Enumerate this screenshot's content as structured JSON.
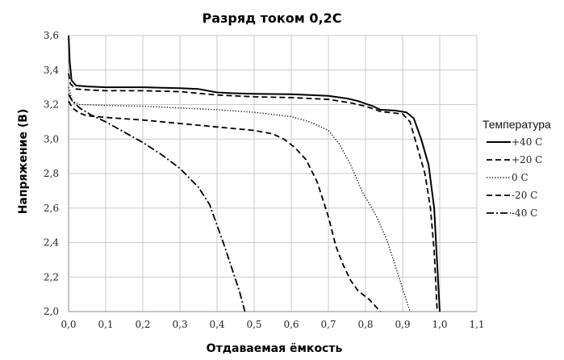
{
  "chart_data": {
    "type": "line",
    "title": "Разряд током 0,2С",
    "xlabel": "Отдаваемая ёмкость",
    "ylabel": "Напряжение (В)",
    "xlim": [
      0,
      1.1
    ],
    "ylim": [
      2.0,
      3.6
    ],
    "x_ticks": [
      "0,0",
      "0,1",
      "0,2",
      "0,3",
      "0,4",
      "0,5",
      "0,6",
      "0,7",
      "0,8",
      "0,9",
      "1,0",
      "1,1"
    ],
    "y_ticks": [
      "2,0",
      "2,2",
      "2,4",
      "2,6",
      "2,8",
      "3,0",
      "3,2",
      "3,4",
      "3,6"
    ],
    "grid": true,
    "legend": {
      "title": "Температура",
      "placement": "right"
    },
    "series": [
      {
        "name": "+40 С",
        "style": "solid",
        "points": [
          [
            0,
            3.6
          ],
          [
            0.003,
            3.45
          ],
          [
            0.008,
            3.34
          ],
          [
            0.02,
            3.31
          ],
          [
            0.05,
            3.305
          ],
          [
            0.1,
            3.3
          ],
          [
            0.2,
            3.3
          ],
          [
            0.3,
            3.295
          ],
          [
            0.35,
            3.29
          ],
          [
            0.4,
            3.27
          ],
          [
            0.45,
            3.265
          ],
          [
            0.5,
            3.262
          ],
          [
            0.6,
            3.26
          ],
          [
            0.7,
            3.25
          ],
          [
            0.75,
            3.235
          ],
          [
            0.78,
            3.22
          ],
          [
            0.82,
            3.19
          ],
          [
            0.84,
            3.17
          ],
          [
            0.88,
            3.165
          ],
          [
            0.91,
            3.155
          ],
          [
            0.93,
            3.12
          ],
          [
            0.95,
            3.0
          ],
          [
            0.97,
            2.85
          ],
          [
            0.985,
            2.6
          ],
          [
            0.995,
            2.2
          ],
          [
            1.0,
            2.0
          ]
        ]
      },
      {
        "name": "+20 С",
        "style": "dashed",
        "points": [
          [
            0,
            3.38
          ],
          [
            0.005,
            3.32
          ],
          [
            0.02,
            3.29
          ],
          [
            0.05,
            3.285
          ],
          [
            0.1,
            3.28
          ],
          [
            0.2,
            3.28
          ],
          [
            0.3,
            3.275
          ],
          [
            0.4,
            3.255
          ],
          [
            0.5,
            3.245
          ],
          [
            0.6,
            3.24
          ],
          [
            0.7,
            3.23
          ],
          [
            0.76,
            3.21
          ],
          [
            0.8,
            3.19
          ],
          [
            0.84,
            3.16
          ],
          [
            0.9,
            3.145
          ],
          [
            0.92,
            3.1
          ],
          [
            0.94,
            2.95
          ],
          [
            0.96,
            2.8
          ],
          [
            0.975,
            2.6
          ],
          [
            0.985,
            2.35
          ],
          [
            0.993,
            2.0
          ]
        ]
      },
      {
        "name": "0 С",
        "style": "dotted",
        "points": [
          [
            0,
            3.3
          ],
          [
            0.01,
            3.22
          ],
          [
            0.03,
            3.2
          ],
          [
            0.1,
            3.195
          ],
          [
            0.2,
            3.19
          ],
          [
            0.3,
            3.18
          ],
          [
            0.4,
            3.17
          ],
          [
            0.5,
            3.155
          ],
          [
            0.6,
            3.13
          ],
          [
            0.65,
            3.1
          ],
          [
            0.7,
            3.05
          ],
          [
            0.73,
            2.97
          ],
          [
            0.76,
            2.85
          ],
          [
            0.79,
            2.7
          ],
          [
            0.83,
            2.55
          ],
          [
            0.86,
            2.4
          ],
          [
            0.89,
            2.2
          ],
          [
            0.905,
            2.1
          ],
          [
            0.92,
            2.0
          ]
        ]
      },
      {
        "name": "-20 С",
        "style": "dashed",
        "points": [
          [
            0,
            3.22
          ],
          [
            0.01,
            3.18
          ],
          [
            0.03,
            3.15
          ],
          [
            0.05,
            3.135
          ],
          [
            0.1,
            3.125
          ],
          [
            0.2,
            3.11
          ],
          [
            0.3,
            3.09
          ],
          [
            0.4,
            3.07
          ],
          [
            0.5,
            3.05
          ],
          [
            0.55,
            3.03
          ],
          [
            0.58,
            3.0
          ],
          [
            0.61,
            2.95
          ],
          [
            0.64,
            2.88
          ],
          [
            0.67,
            2.75
          ],
          [
            0.7,
            2.55
          ],
          [
            0.72,
            2.38
          ],
          [
            0.74,
            2.27
          ],
          [
            0.76,
            2.18
          ],
          [
            0.78,
            2.12
          ],
          [
            0.81,
            2.07
          ],
          [
            0.84,
            2.0
          ]
        ]
      },
      {
        "name": "-40 С",
        "style": "dashdot",
        "points": [
          [
            0,
            3.26
          ],
          [
            0.01,
            3.22
          ],
          [
            0.03,
            3.18
          ],
          [
            0.06,
            3.14
          ],
          [
            0.1,
            3.1
          ],
          [
            0.15,
            3.04
          ],
          [
            0.2,
            2.98
          ],
          [
            0.25,
            2.91
          ],
          [
            0.3,
            2.83
          ],
          [
            0.35,
            2.72
          ],
          [
            0.38,
            2.62
          ],
          [
            0.4,
            2.5
          ],
          [
            0.42,
            2.38
          ],
          [
            0.44,
            2.25
          ],
          [
            0.46,
            2.12
          ],
          [
            0.475,
            2.0
          ]
        ]
      }
    ]
  }
}
